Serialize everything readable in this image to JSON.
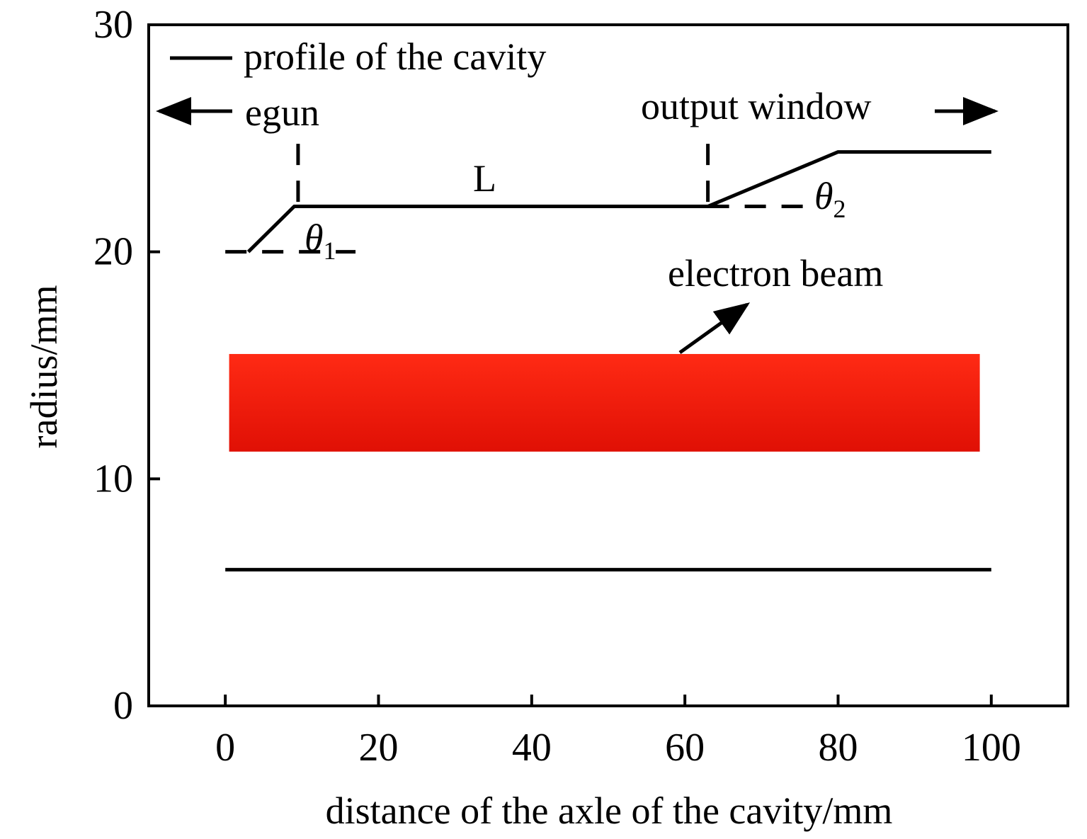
{
  "chart_data": {
    "type": "line",
    "title": "",
    "xlabel": "distance of the axle of the cavity/mm",
    "ylabel": "radius/mm",
    "xlim": [
      -10,
      110
    ],
    "ylim": [
      0,
      30
    ],
    "xticks": [
      "0",
      "20",
      "40",
      "60",
      "80",
      "100"
    ],
    "xtick_values": [
      0,
      20,
      40,
      60,
      80,
      100
    ],
    "yticks": [
      "0",
      "10",
      "20",
      "30"
    ],
    "ytick_values": [
      0,
      10,
      20,
      30
    ],
    "grid": false,
    "legend": {
      "position": "top-left",
      "entries": [
        "profile of the cavity"
      ]
    },
    "series": [
      {
        "name": "profile of the cavity",
        "segments": [
          {
            "x": [
              3,
              9,
              63,
              80,
              100
            ],
            "y": [
              20,
              22,
              22,
              24.4,
              24.4
            ]
          },
          {
            "x": [
              0,
              100
            ],
            "y": [
              6,
              6
            ]
          }
        ]
      }
    ],
    "dashed_lines": [
      {
        "x": [
          0,
          17
        ],
        "y": [
          20,
          20
        ]
      },
      {
        "x": [
          63,
          76
        ],
        "y": [
          22,
          22
        ]
      },
      {
        "x": [
          9.5,
          9.5
        ],
        "y": [
          22.2,
          25
        ]
      },
      {
        "x": [
          63,
          63
        ],
        "y": [
          22.2,
          25
        ]
      }
    ],
    "beam_band": {
      "x": [
        0.5,
        98.5
      ],
      "y": [
        11.2,
        15.5
      ],
      "color": "#e8170a"
    },
    "annotations": {
      "egun": "egun",
      "output_window": "output window",
      "length": "L",
      "theta1": "θ",
      "theta1_sub": "1",
      "theta2": "θ",
      "theta2_sub": "2",
      "electron_beam": "electron beam"
    }
  }
}
